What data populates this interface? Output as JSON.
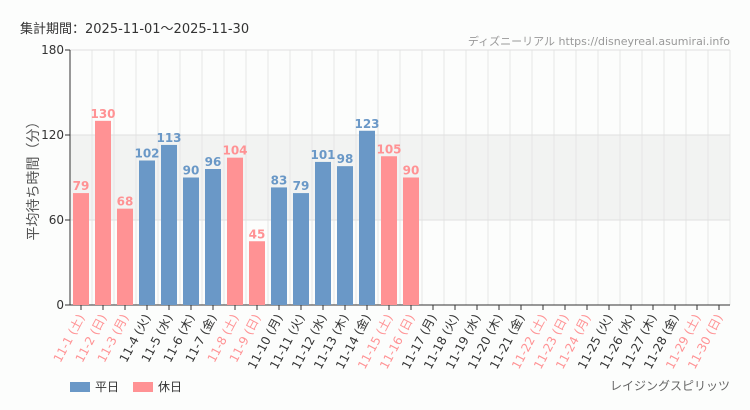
{
  "header": {
    "period": "集計期間：2025-11-01～2025-11-30",
    "credit": "ディズニーリアル https://disneyreal.asumirai.info"
  },
  "attraction": "レイジングスピリッツ",
  "colors": {
    "weekday": "#6a98c7",
    "holiday": "#ff9294",
    "band": "#f2f3f2"
  },
  "legend": {
    "weekday": "平日",
    "holiday": "休日"
  },
  "chart_data": {
    "type": "bar",
    "ylabel": "平均待ち時間（分）",
    "ylim": [
      0,
      180
    ],
    "yticks": [
      0,
      60,
      120,
      180
    ],
    "shaded_band": [
      60,
      120
    ],
    "grid": true,
    "legend_position": "bottom-left",
    "categories": [
      "11-1 (土)",
      "11-2 (日)",
      "11-3 (月)",
      "11-4 (火)",
      "11-5 (水)",
      "11-6 (木)",
      "11-7 (金)",
      "11-8 (土)",
      "11-9 (日)",
      "11-10 (月)",
      "11-11 (火)",
      "11-12 (水)",
      "11-13 (木)",
      "11-14 (金)",
      "11-15 (土)",
      "11-16 (日)",
      "11-17 (月)",
      "11-18 (火)",
      "11-19 (水)",
      "11-20 (木)",
      "11-21 (金)",
      "11-22 (土)",
      "11-23 (日)",
      "11-24 (月)",
      "11-25 (火)",
      "11-26 (水)",
      "11-27 (木)",
      "11-28 (金)",
      "11-29 (土)",
      "11-30 (日)"
    ],
    "holiday": [
      true,
      true,
      true,
      false,
      false,
      false,
      false,
      true,
      true,
      false,
      false,
      false,
      false,
      false,
      true,
      true,
      false,
      false,
      false,
      false,
      false,
      true,
      true,
      true,
      false,
      false,
      false,
      false,
      true,
      true
    ],
    "values": [
      79,
      130,
      68,
      102,
      113,
      90,
      96,
      104,
      45,
      83,
      79,
      101,
      98,
      123,
      105,
      90,
      null,
      null,
      null,
      null,
      null,
      null,
      null,
      null,
      null,
      null,
      null,
      null,
      null,
      null
    ]
  }
}
